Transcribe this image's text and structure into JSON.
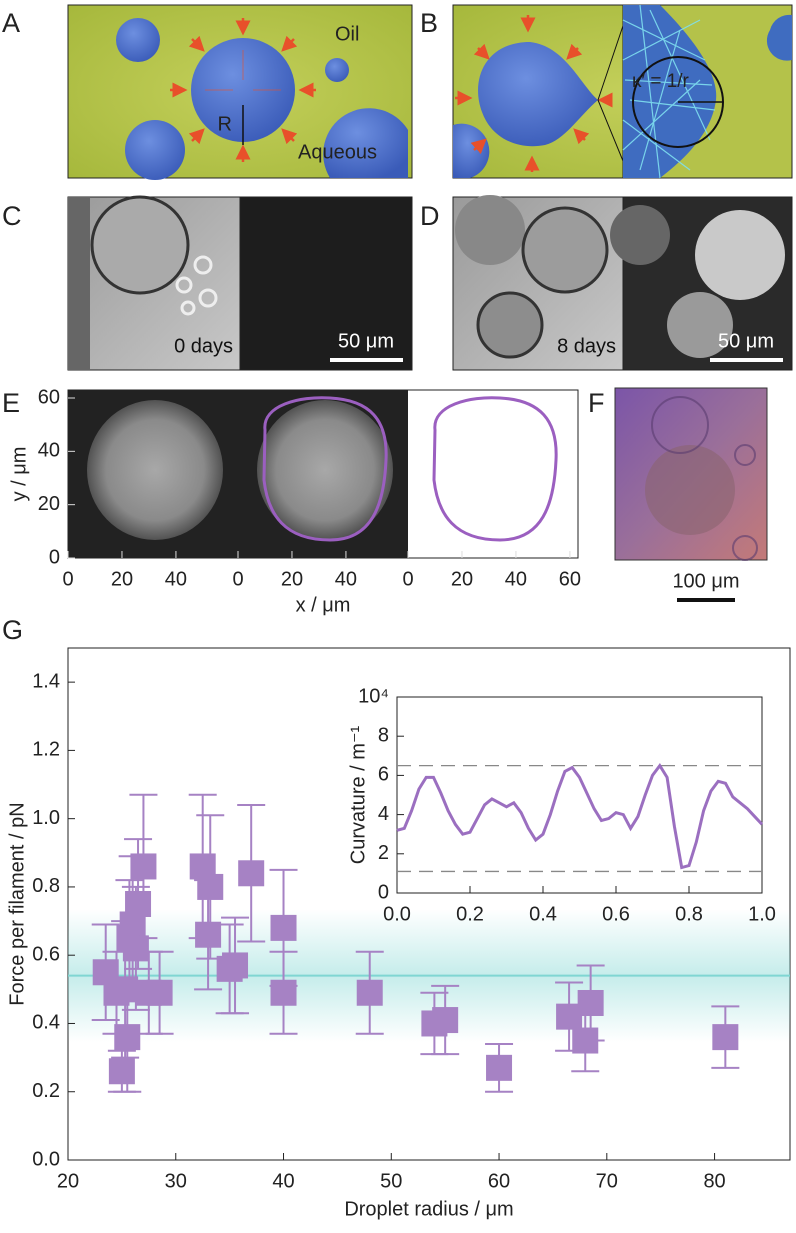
{
  "panels": {
    "labels": [
      "A",
      "B",
      "C",
      "D",
      "E",
      "F",
      "G"
    ],
    "a_oil": "Oil",
    "a_aqueous": "Aqueous",
    "a_radius": "R",
    "b_curvature": "κ′ = 1/r",
    "c_time": "0 days",
    "c_scale": "50 μm",
    "d_time": "8 days",
    "d_scale": "50 μm",
    "f_scale": "100 μm"
  },
  "chart_data": [
    {
      "type": "image",
      "xlim": [
        0,
        63
      ],
      "ylim": [
        0,
        63
      ],
      "xticks": [
        0,
        20,
        40
      ],
      "yticks": [
        0,
        20,
        40,
        60
      ],
      "ylabel": "y / μm"
    },
    {
      "type": "image",
      "xlim": [
        0,
        63
      ],
      "xticks": [
        0,
        20,
        40
      ],
      "xlabel": "x / μm"
    },
    {
      "type": "image",
      "xlim": [
        0,
        63
      ],
      "xticks": [
        0,
        20,
        40,
        60
      ]
    },
    {
      "type": "scatter",
      "xlabel": "Droplet radius / μm",
      "ylabel": "Force per filament / pN",
      "xlim": [
        20,
        87
      ],
      "ylim": [
        0,
        1.5
      ],
      "xticks": [
        20,
        30,
        40,
        50,
        60,
        70,
        80
      ],
      "yticks": [
        {
          "value": 0,
          "label": "0.0"
        },
        0.2,
        0.4,
        0.6,
        0.8,
        {
          "value": 1,
          "label": "1.0"
        },
        1.2,
        1.4
      ],
      "x": [
        23.5,
        24.5,
        25,
        25.3,
        25.5,
        25.7,
        26,
        26.3,
        26.5,
        27,
        27.5,
        28.5,
        32.5,
        33,
        33.2,
        35,
        35.5,
        37,
        40,
        40,
        48,
        54,
        55,
        60,
        66.5,
        68,
        68.5,
        81
      ],
      "values": [
        0.55,
        0.49,
        0.26,
        0.5,
        0.36,
        0.65,
        0.69,
        0.62,
        0.75,
        0.86,
        0.49,
        0.49,
        0.86,
        0.66,
        0.8,
        0.56,
        0.57,
        0.84,
        0.68,
        0.49,
        0.49,
        0.4,
        0.41,
        0.27,
        0.42,
        0.35,
        0.46,
        0.36
      ],
      "errors": [
        0.14,
        0.12,
        0.06,
        0.2,
        0.16,
        0.17,
        0.2,
        0.18,
        0.19,
        0.21,
        0.12,
        0.12,
        0.21,
        0.16,
        0.21,
        0.13,
        0.14,
        0.2,
        0.17,
        0.12,
        0.12,
        0.09,
        0.1,
        0.07,
        0.1,
        0.09,
        0.11,
        0.09
      ],
      "color": "#a682c4",
      "mean": 0.54,
      "band": [
        0.39,
        0.69
      ],
      "band_color": "#7fd6d2"
    },
    {
      "type": "line",
      "ylabel": "Curvature / m⁻¹",
      "xlim": [
        0,
        1
      ],
      "ylim": [
        0,
        10
      ],
      "xticks": [
        {
          "value": 0,
          "label": "0.0"
        },
        0.2,
        0.4,
        0.6,
        0.8,
        {
          "value": 1,
          "label": "1.0"
        }
      ],
      "yticks": [
        0,
        2,
        4,
        6,
        8,
        {
          "value": 10,
          "label": "10⁴"
        }
      ],
      "x": [
        0,
        0.02,
        0.04,
        0.06,
        0.08,
        0.1,
        0.12,
        0.14,
        0.16,
        0.18,
        0.2,
        0.22,
        0.24,
        0.26,
        0.28,
        0.3,
        0.32,
        0.34,
        0.36,
        0.38,
        0.4,
        0.42,
        0.44,
        0.46,
        0.48,
        0.5,
        0.52,
        0.54,
        0.56,
        0.58,
        0.6,
        0.62,
        0.64,
        0.66,
        0.68,
        0.7,
        0.72,
        0.74,
        0.76,
        0.78,
        0.8,
        0.82,
        0.84,
        0.86,
        0.88,
        0.9,
        0.92,
        0.94,
        0.96,
        0.98,
        1
      ],
      "values": [
        3.2,
        3.3,
        4.2,
        5.3,
        5.9,
        5.9,
        5.1,
        4.2,
        3.5,
        3.0,
        3.1,
        3.8,
        4.5,
        4.8,
        4.6,
        4.4,
        4.6,
        4.1,
        3.3,
        2.7,
        3.0,
        4.0,
        5.2,
        6.2,
        6.4,
        5.9,
        5.1,
        4.3,
        3.7,
        3.8,
        4.1,
        4.0,
        3.3,
        3.9,
        5.0,
        6.0,
        6.5,
        5.9,
        3.4,
        1.3,
        1.4,
        2.6,
        4.2,
        5.2,
        5.7,
        5.6,
        4.9,
        4.6,
        4.3,
        3.9,
        3.5
      ],
      "color": "#9b6fc0",
      "reference_lines": [
        6.5,
        1.1
      ]
    }
  ]
}
